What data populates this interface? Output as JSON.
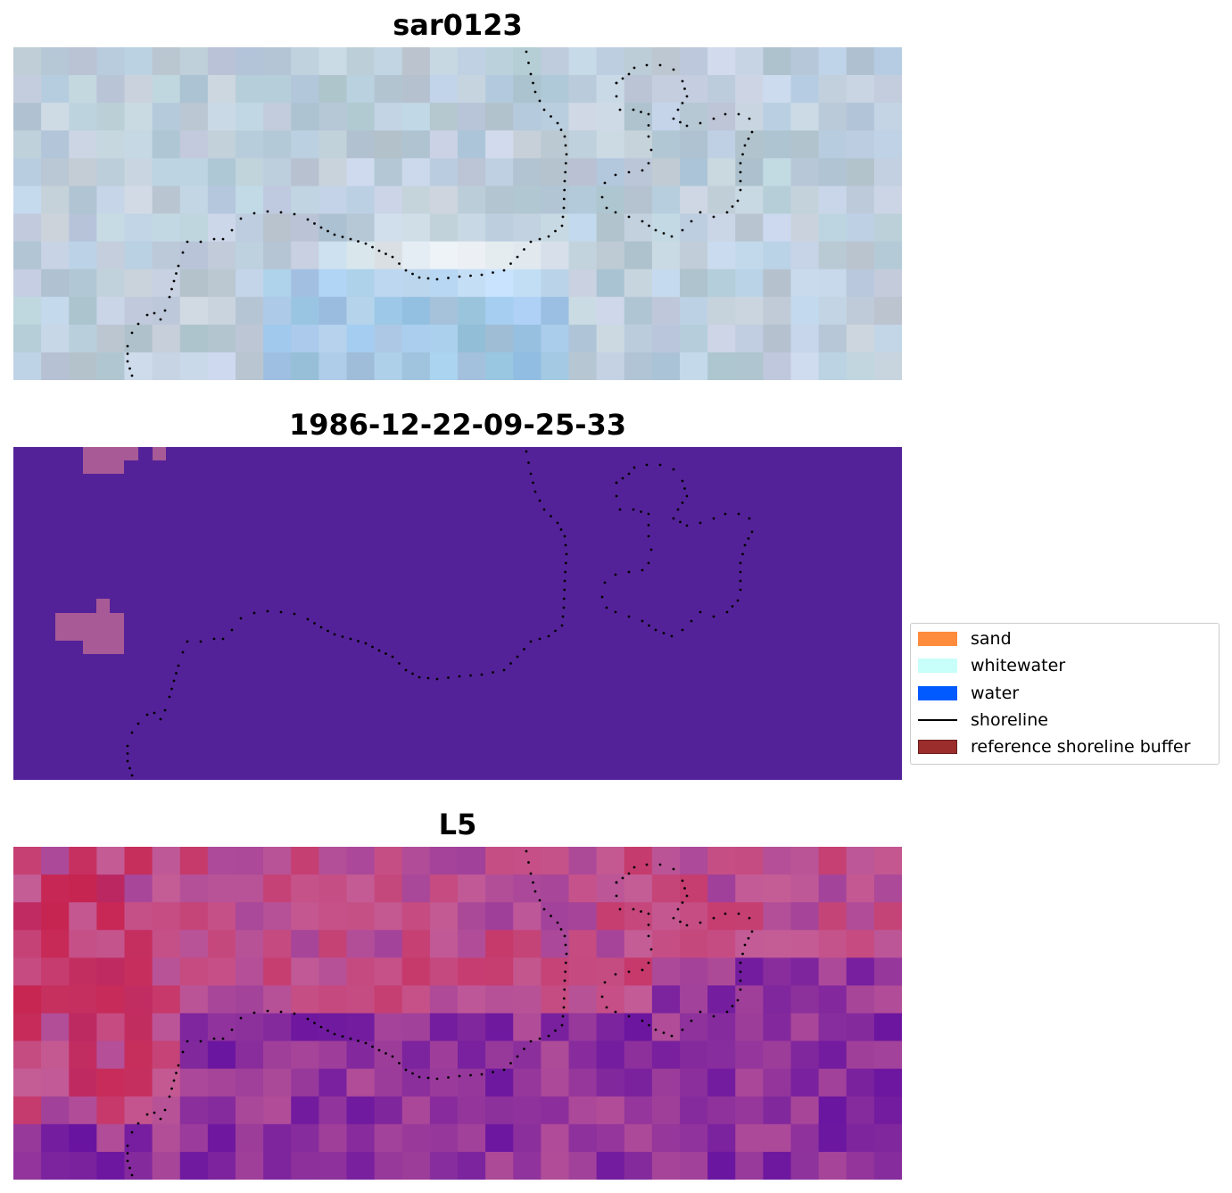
{
  "panels": [
    {
      "id": "rgb",
      "title": "sar0123"
    },
    {
      "id": "classified",
      "title": "1986-12-22-09-25-33"
    },
    {
      "id": "index",
      "title": "L5"
    }
  ],
  "legend": {
    "items": [
      {
        "label": "sand",
        "kind": "patch",
        "color": "#ff8c3c",
        "edge": "#ff8c3c"
      },
      {
        "label": "whitewater",
        "kind": "patch",
        "color": "#c8fffa",
        "edge": "#c8fffa"
      },
      {
        "label": "water",
        "kind": "patch",
        "color": "#005aff",
        "edge": "#005aff"
      },
      {
        "label": "shoreline",
        "kind": "line",
        "color": "#000000"
      },
      {
        "label": "reference shoreline buffer",
        "kind": "patch",
        "color": "#9b2d2d",
        "edge": "#6b1e1e"
      }
    ]
  },
  "colors": {
    "classified_background": "#542298",
    "classified_patch": "#a85a96",
    "shoreline_dots": "#000000"
  }
}
